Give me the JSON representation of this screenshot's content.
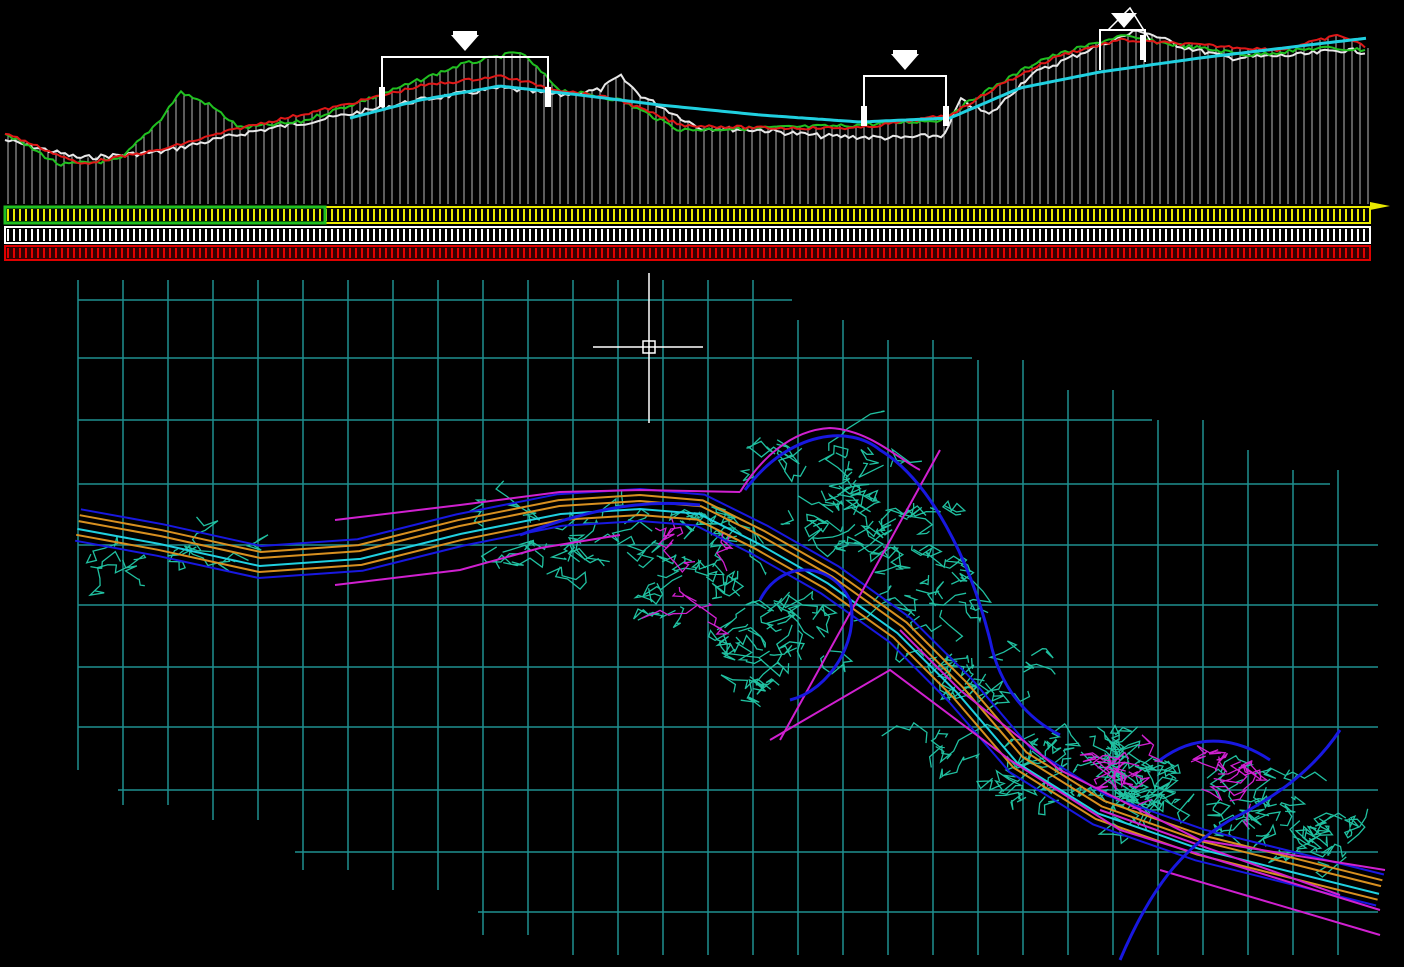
{
  "colors": {
    "background": "#000000",
    "grid": "#1f8f8f",
    "ground_white": "#e8e8e8",
    "ground_red": "#e01818",
    "ground_green": "#20c020",
    "design_cyan": "#20d0e0",
    "band_yellow": "#e8e800",
    "band_green": "#20c020",
    "band_white": "#ffffff",
    "band_red": "#e00000",
    "road_orange": "#d89020",
    "road_magenta": "#d020d0",
    "contour_teal": "#20c0a0",
    "boundary_blue": "#1818e0",
    "crosshair": "#ffffff"
  },
  "view": {
    "crosshair": "crosshair-cursor",
    "profile_panel": "longitudinal-profile",
    "plan_panel": "plan-view"
  }
}
